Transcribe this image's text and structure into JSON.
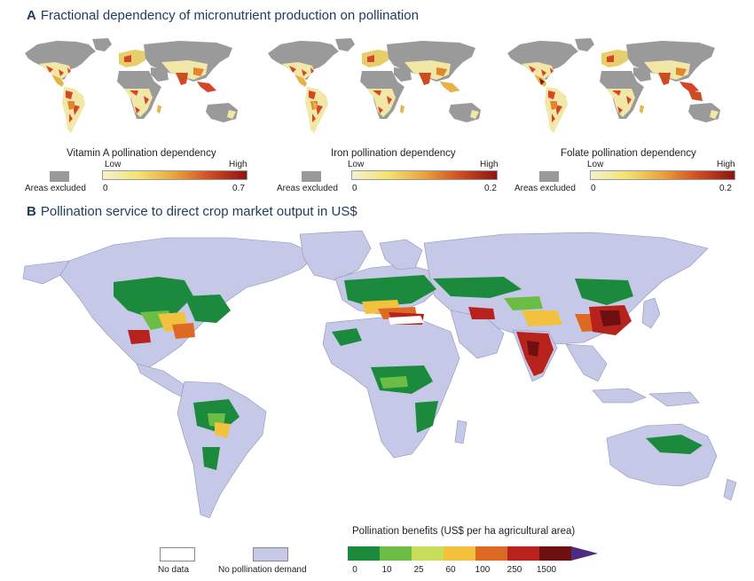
{
  "panel_a": {
    "letter": "A",
    "title": "Fractional dependency of micronutrient production on pollination",
    "maps": [
      {
        "legend_title": "Vitamin A pollination dependency",
        "low_label": "Low",
        "high_label": "High",
        "min_label": "0",
        "max_label": "0.7",
        "excluded_label": "Areas excluded",
        "gradient_colors": [
          "#f5f0cf",
          "#f3e272",
          "#eaa23c",
          "#cf4b22",
          "#8c1515"
        ]
      },
      {
        "legend_title": "Iron pollination dependency",
        "low_label": "Low",
        "high_label": "High",
        "min_label": "0",
        "max_label": "0.2",
        "excluded_label": "Areas excluded",
        "gradient_colors": [
          "#f5f0cf",
          "#f3e272",
          "#eaa23c",
          "#cf4b22",
          "#8c1515"
        ]
      },
      {
        "legend_title": "Folate pollination dependency",
        "low_label": "Low",
        "high_label": "High",
        "min_label": "0",
        "max_label": "0.2",
        "excluded_label": "Areas excluded",
        "gradient_colors": [
          "#f5f0cf",
          "#f3e272",
          "#eaa23c",
          "#cf4b22",
          "#8c1515"
        ]
      }
    ],
    "excluded_color": "#9a9a9a"
  },
  "panel_b": {
    "letter": "B",
    "title": "Pollination service to direct crop market output in US$",
    "no_data_label": "No data",
    "no_demand_label": "No pollination demand",
    "no_demand_color": "#c5c8e6",
    "legend_title": "Pollination benefits (US$ per ha agricultural area)",
    "bins": [
      {
        "color": "#1b8a3c"
      },
      {
        "color": "#6cbd45"
      },
      {
        "color": "#c8dd5a"
      },
      {
        "color": "#f2c23f"
      },
      {
        "color": "#dd6a24"
      },
      {
        "color": "#b8221c"
      },
      {
        "color": "#6e0f12"
      },
      {
        "color": "#4f2b80"
      }
    ],
    "ticks": [
      "0",
      "10",
      "25",
      "60",
      "100",
      "250",
      "1500"
    ]
  }
}
